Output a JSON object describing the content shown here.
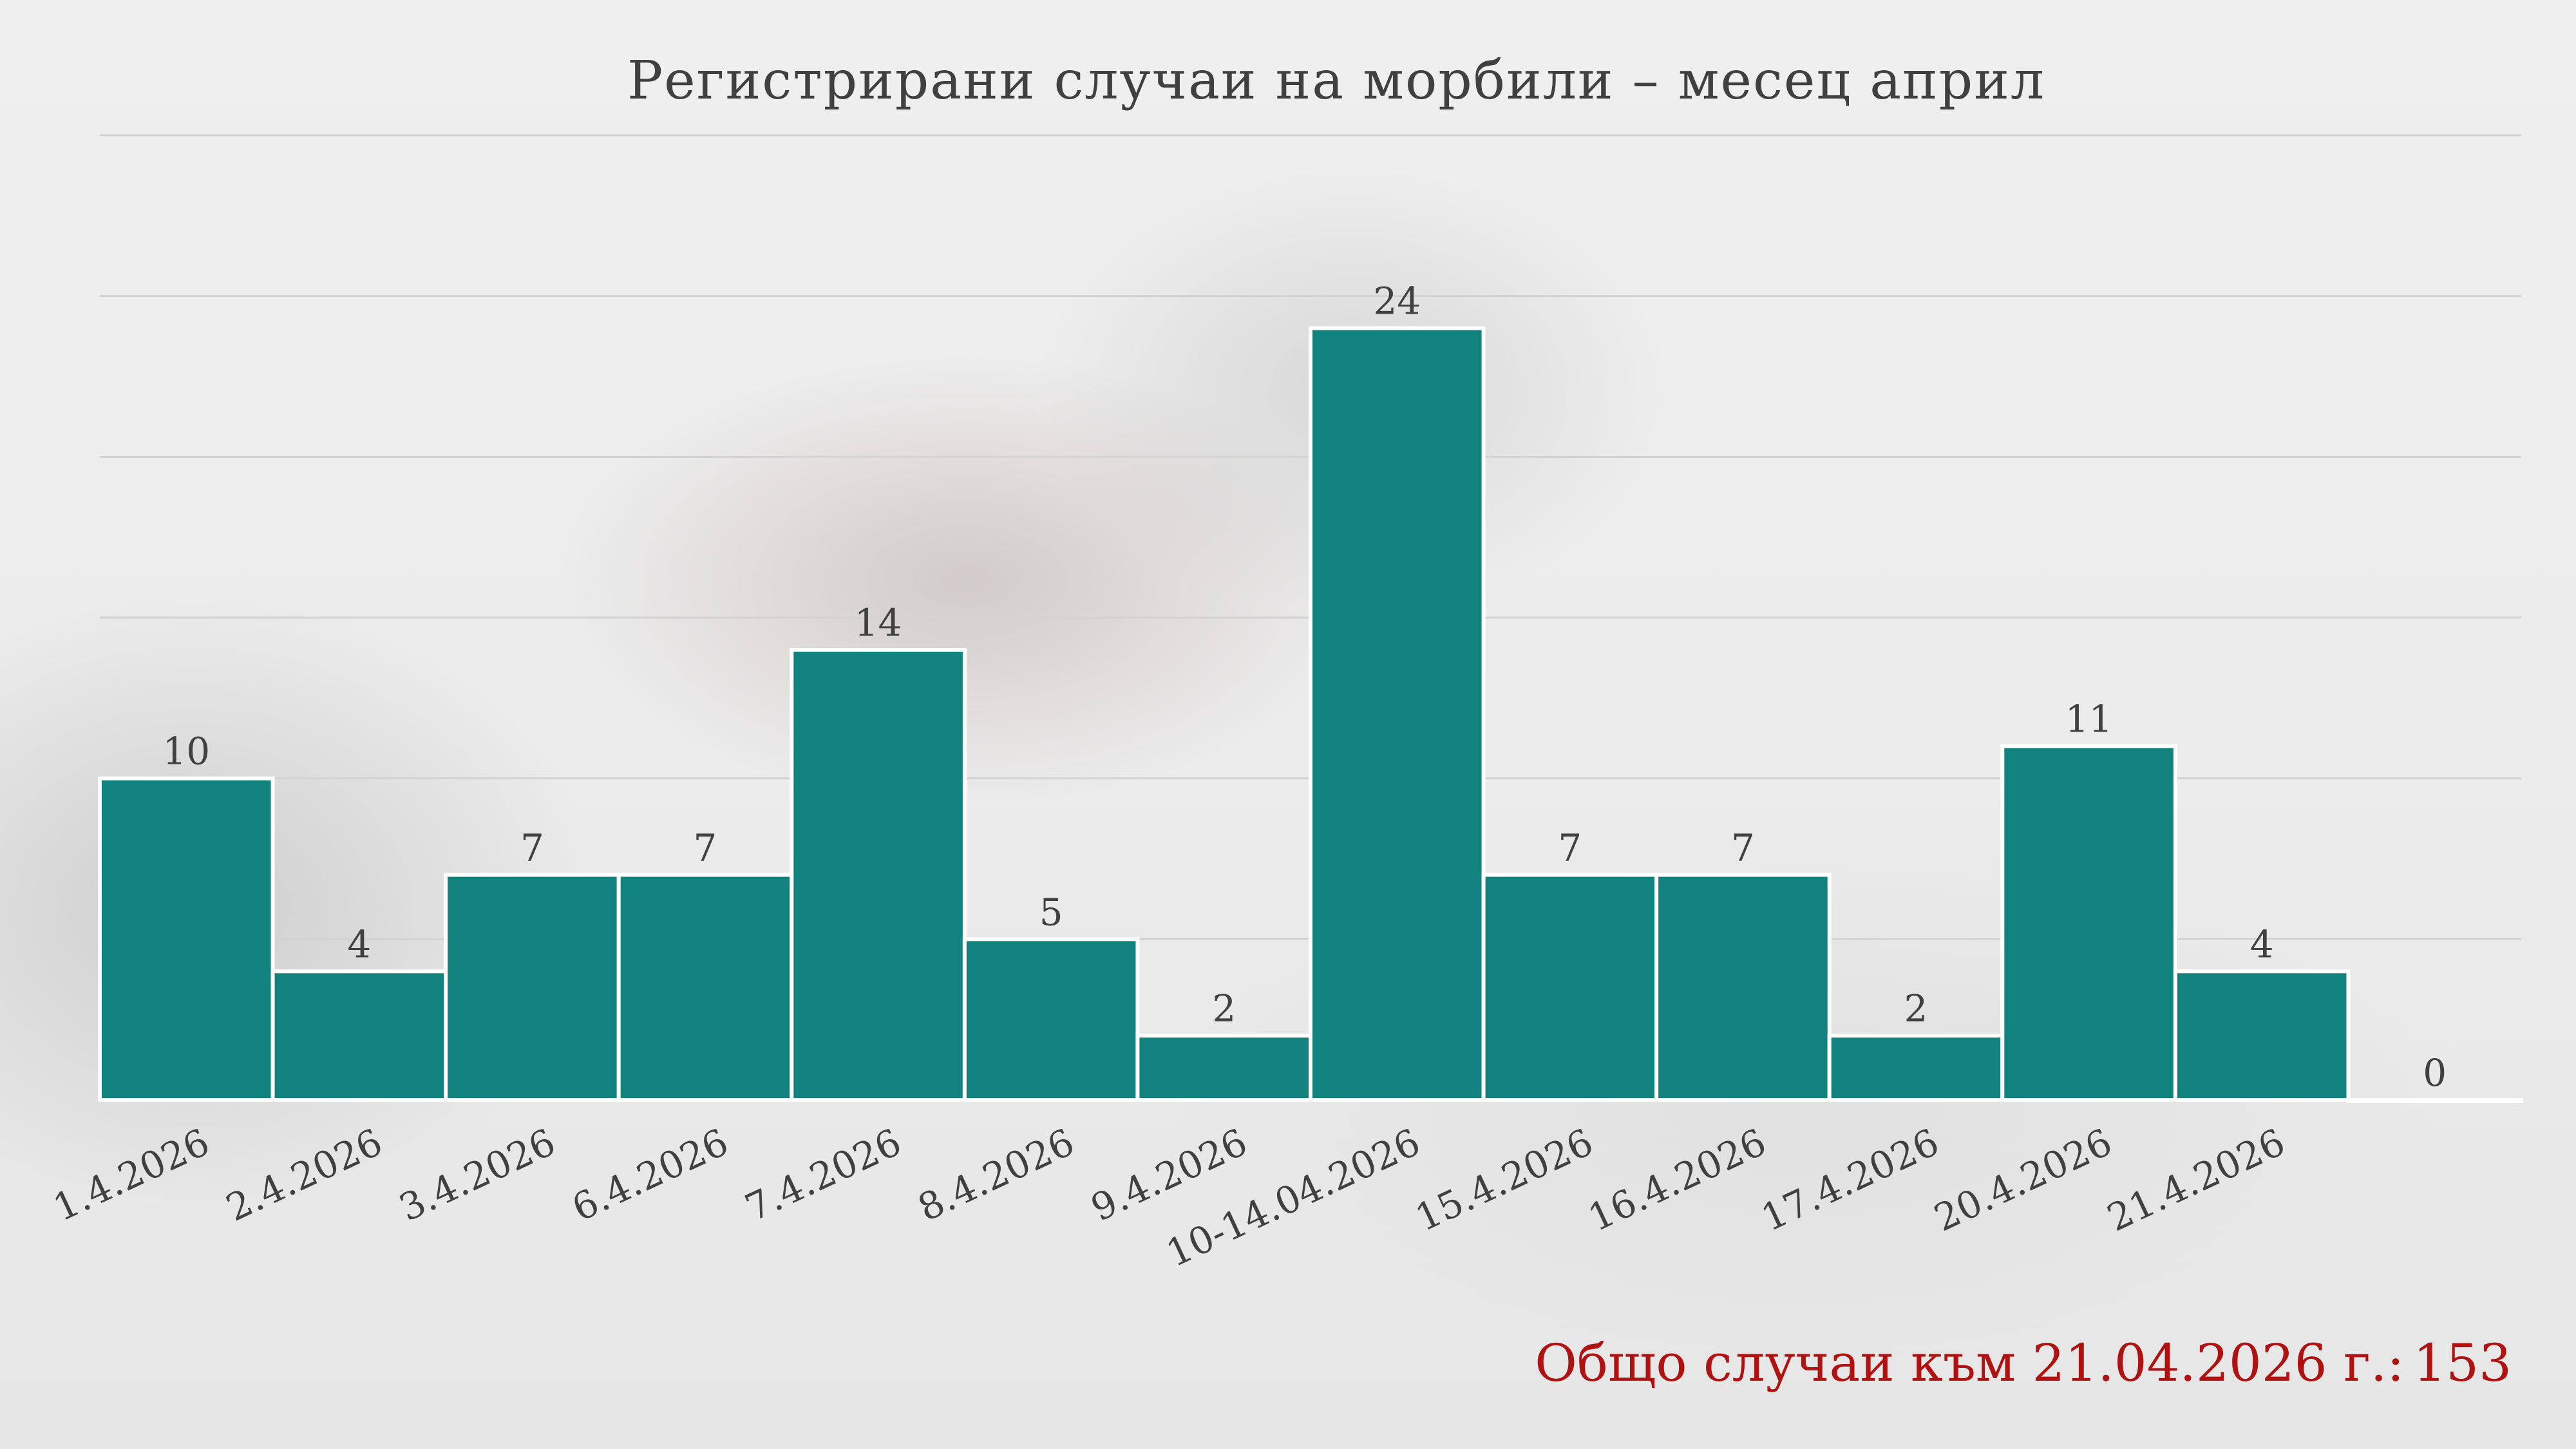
{
  "chart_data": {
    "type": "bar",
    "title": "Регистрирани случаи на морбили – месец април",
    "categories": [
      "1.4.2026",
      "2.4.2026",
      "3.4.2026",
      "6.4.2026",
      "7.4.2026",
      "8.4.2026",
      "9.4.2026",
      "10-14.04.2026",
      "15.4.2026",
      "16.4.2026",
      "17.4.2026",
      "20.4.2026",
      "21.4.2026",
      ""
    ],
    "values": [
      10,
      4,
      7,
      7,
      14,
      5,
      2,
      24,
      7,
      7,
      2,
      11,
      4,
      0
    ],
    "xlabel": "",
    "ylabel": "",
    "ylim": [
      0,
      30
    ],
    "grid": true,
    "legend": "none",
    "bar_color": "#11827e",
    "gridline_color": "#d3d3d3"
  },
  "total": {
    "label": "Общо случаи към 21.04.2026 г.:",
    "value": "153",
    "color": "#b01212"
  }
}
